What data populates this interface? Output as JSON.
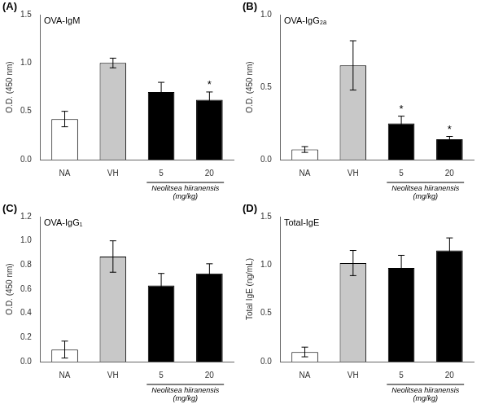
{
  "chart_data": [
    {
      "type": "bar",
      "title": "OVA-IgM",
      "ylabel": "O.D. (450 nm)",
      "annotations": [
        "(A)",
        "Neolitsea hiiranensis\n(mg/kg)"
      ],
      "categories": [
        "NA",
        "VH",
        "5",
        "20"
      ],
      "values": [
        0.42,
        1.0,
        0.7,
        0.62
      ],
      "errors": [
        0.08,
        0.05,
        0.1,
        0.08
      ],
      "significance": [
        null,
        null,
        null,
        "*"
      ],
      "colors": [
        "white",
        "#c8c8c8",
        "black",
        "black"
      ],
      "ylim": [
        0,
        1.5
      ],
      "yticks": [
        {
          "value": 0.0,
          "label": "0.0"
        },
        0.5,
        {
          "value": 1.0,
          "label": "1.0"
        },
        1.5
      ],
      "grid": false
    },
    {
      "type": "bar",
      "title": "OVA-IgG₂ₐ",
      "ylabel": "O.D. (450 nm)",
      "annotations": [
        "(B)",
        "Neolitsea hiiranensis\n(mg/kg)"
      ],
      "categories": [
        "NA",
        "VH",
        "5",
        "20"
      ],
      "values": [
        0.07,
        0.65,
        0.25,
        0.14
      ],
      "errors": [
        0.02,
        0.17,
        0.05,
        0.02
      ],
      "significance": [
        null,
        null,
        "*",
        "*"
      ],
      "colors": [
        "white",
        "#c8c8c8",
        "black",
        "black"
      ],
      "ylim": [
        0,
        1.0
      ],
      "yticks": [
        {
          "value": 0.0,
          "label": "0.0"
        },
        0.5,
        {
          "value": 1.0,
          "label": "1.0"
        }
      ],
      "grid": false
    },
    {
      "type": "bar",
      "title": "OVA-IgG₁",
      "ylabel": "O.D. (450 nm)",
      "annotations": [
        "(C)",
        "Neolitsea hiiranensis\n(mg/kg)"
      ],
      "categories": [
        "NA",
        "VH",
        "5",
        "20"
      ],
      "values": [
        0.1,
        0.87,
        0.63,
        0.73
      ],
      "errors": [
        0.07,
        0.13,
        0.1,
        0.08
      ],
      "significance": [
        null,
        null,
        null,
        null
      ],
      "colors": [
        "white",
        "#c8c8c8",
        "black",
        "black"
      ],
      "ylim": [
        0,
        1.2
      ],
      "yticks": [
        {
          "value": 0.0,
          "label": "0.0"
        },
        0.2,
        0.4,
        0.6,
        0.8,
        {
          "value": 1.0,
          "label": "1.0"
        },
        1.2
      ],
      "grid": false
    },
    {
      "type": "bar",
      "title": "Total-IgE",
      "ylabel": "Total IgE (ng/mL)",
      "annotations": [
        "(D)",
        "Neolitsea hiiranensis\n(mg/kg)"
      ],
      "categories": [
        "NA",
        "VH",
        "5",
        "20"
      ],
      "values": [
        0.1,
        1.02,
        0.97,
        1.15
      ],
      "errors": [
        0.05,
        0.13,
        0.13,
        0.13
      ],
      "significance": [
        null,
        null,
        null,
        null
      ],
      "colors": [
        "white",
        "#c8c8c8",
        "black",
        "black"
      ],
      "ylim": [
        0,
        1.5
      ],
      "yticks": [
        {
          "value": 0.0,
          "label": "0.0"
        },
        0.5,
        {
          "value": 1.0,
          "label": "1.0"
        },
        1.5
      ],
      "grid": false
    }
  ]
}
